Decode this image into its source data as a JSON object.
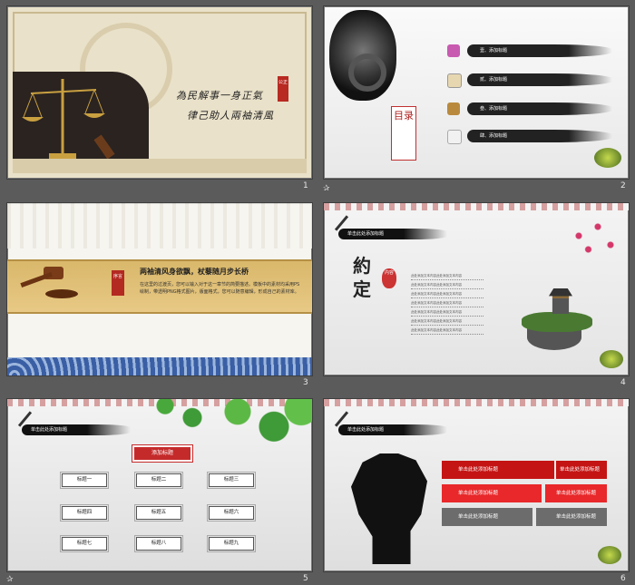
{
  "slide1": {
    "number": "1",
    "line1": "為民解事一身正氣",
    "line2": "律己助人兩袖清風",
    "seal": "公正"
  },
  "slide2": {
    "number": "2",
    "toc_title": "目录",
    "items": [
      "壹、添加标题",
      "贰、添加标题",
      "叁、添加标题",
      "肆、添加标题"
    ],
    "icon_colors": [
      "#c85ab0",
      "#e6d7b0",
      "#b98a3e",
      "#f1f1f1"
    ]
  },
  "slide3": {
    "number": "3",
    "seal": "序言",
    "heading": "两袖清风身欲飘，杖藜随月步长桥",
    "body": "在这里的过渡页，您可以输入对于这一章节的简要描述。模板中的素材均采用PS绘制，带透明PNG格式图片，版面格式，您可以随意编辑，形成自己的素材库。"
  },
  "slide4": {
    "number": "4",
    "bar": "单击此处添加标题",
    "big": "約定",
    "seal": "内容",
    "lines": [
      "此处添加文本内容此处添加文本内容",
      "此处添加文本内容此处添加文本内容",
      "此处添加文本内容此处添加文本内容",
      "此处添加文本内容此处添加文本内容",
      "此处添加文本内容此处添加文本内容",
      "此处添加文本内容此处添加文本内容",
      "此处添加文本内容此处添加文本内容"
    ]
  },
  "slide5": {
    "number": "5",
    "bar": "单击此处添加标题",
    "add_title": "添加标题",
    "buttons": [
      "标题一",
      "标题二",
      "标题三",
      "标题四",
      "标题五",
      "标题六",
      "标题七",
      "标题八",
      "标题九"
    ]
  },
  "slide6": {
    "number": "6",
    "bar": "单击此处添加标题",
    "rows": [
      {
        "left": "单击此处添加标题",
        "right": "单击此处添加标题"
      },
      {
        "left": "单击此处添加标题",
        "right": "单击此处添加标题"
      },
      {
        "left": "单击此处添加标题",
        "right": "单击此处添加标题"
      }
    ]
  },
  "star": "✰"
}
